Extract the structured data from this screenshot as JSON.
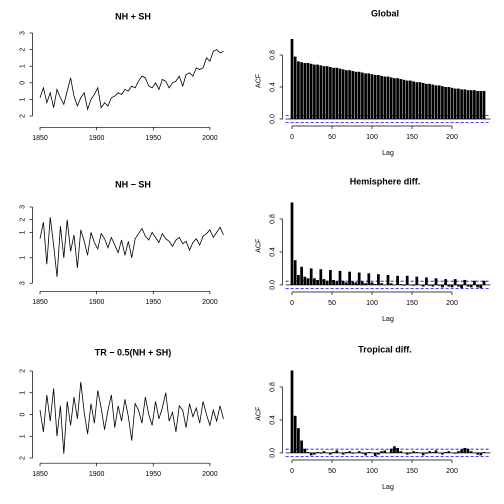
{
  "chart_data": [
    {
      "type": "line",
      "title": "NH + SH",
      "color": "#000000",
      "x": [
        1850,
        1853,
        1856,
        1859,
        1862,
        1865,
        1868,
        1871,
        1874,
        1877,
        1880,
        1883,
        1886,
        1889,
        1892,
        1895,
        1898,
        1901,
        1904,
        1907,
        1910,
        1913,
        1916,
        1919,
        1922,
        1925,
        1928,
        1931,
        1934,
        1937,
        1940,
        1943,
        1946,
        1949,
        1952,
        1955,
        1958,
        1961,
        1964,
        1967,
        1970,
        1973,
        1976,
        1979,
        1982,
        1985,
        1988,
        1991,
        1994,
        1997,
        2000,
        2003,
        2006,
        2009,
        2012
      ],
      "values": [
        -0.9,
        -0.3,
        -1.2,
        -0.6,
        -1.5,
        -0.4,
        -0.9,
        -1.3,
        -0.5,
        0.3,
        -0.8,
        -1.4,
        -0.9,
        -0.6,
        -1.6,
        -1.0,
        -0.7,
        -0.3,
        -1.5,
        -1.2,
        -1.4,
        -0.9,
        -0.8,
        -0.6,
        -0.7,
        -0.4,
        -0.5,
        -0.2,
        -0.3,
        0.1,
        0.4,
        0.3,
        -0.2,
        -0.3,
        0.0,
        -0.4,
        0.2,
        0.1,
        -0.3,
        0.0,
        0.1,
        0.4,
        -0.2,
        0.5,
        0.6,
        0.4,
        0.9,
        0.8,
        0.9,
        1.5,
        1.3,
        1.9,
        2.0,
        1.8,
        1.9
      ],
      "xlim": [
        1846,
        2016
      ],
      "xticks": [
        1850,
        1900,
        1950,
        2000
      ],
      "ylim": [
        -2.5,
        3.2
      ],
      "yticks": [
        3,
        2,
        1,
        0,
        {
          "value": -1,
          "label": "1"
        },
        {
          "value": -2,
          "label": "2"
        }
      ]
    },
    {
      "type": "bar",
      "title": "Global",
      "xlabel": "Lag",
      "ylabel": "ACF",
      "color": "#000000",
      "ci": [
        -0.045,
        0.045
      ],
      "ci_color": "#0000ff",
      "x": [
        0,
        4,
        8,
        12,
        16,
        20,
        24,
        28,
        32,
        36,
        40,
        44,
        48,
        52,
        56,
        60,
        64,
        68,
        72,
        76,
        80,
        84,
        88,
        92,
        96,
        100,
        104,
        108,
        112,
        116,
        120,
        124,
        128,
        132,
        136,
        140,
        144,
        148,
        152,
        156,
        160,
        164,
        168,
        172,
        176,
        180,
        184,
        188,
        192,
        196,
        200,
        204,
        208,
        212,
        216,
        220,
        224,
        228,
        232,
        236,
        240
      ],
      "values": [
        1.0,
        0.78,
        0.72,
        0.71,
        0.7,
        0.7,
        0.69,
        0.68,
        0.68,
        0.67,
        0.66,
        0.66,
        0.65,
        0.64,
        0.64,
        0.63,
        0.62,
        0.61,
        0.61,
        0.6,
        0.59,
        0.59,
        0.58,
        0.57,
        0.57,
        0.56,
        0.55,
        0.55,
        0.54,
        0.53,
        0.53,
        0.52,
        0.51,
        0.51,
        0.5,
        0.49,
        0.48,
        0.48,
        0.47,
        0.46,
        0.46,
        0.45,
        0.44,
        0.44,
        0.43,
        0.42,
        0.42,
        0.41,
        0.4,
        0.4,
        0.39,
        0.38,
        0.38,
        0.37,
        0.37,
        0.36,
        0.36,
        0.36,
        0.35,
        0.35,
        0.35
      ],
      "xlim": [
        -8,
        248
      ],
      "xticks": [
        0,
        50,
        100,
        150,
        200
      ],
      "ylim": [
        -0.05,
        1.0
      ],
      "yticks": [
        {
          "value": 0,
          "label": "0.0"
        },
        0.4,
        0.8
      ]
    },
    {
      "type": "line",
      "title": "NH − SH",
      "color": "#000000",
      "x": [
        1850,
        1853,
        1856,
        1859,
        1862,
        1865,
        1868,
        1871,
        1874,
        1877,
        1880,
        1883,
        1886,
        1889,
        1892,
        1895,
        1898,
        1901,
        1904,
        1907,
        1910,
        1913,
        1916,
        1919,
        1922,
        1925,
        1928,
        1931,
        1934,
        1937,
        1940,
        1943,
        1946,
        1949,
        1952,
        1955,
        1958,
        1961,
        1964,
        1967,
        1970,
        1973,
        1976,
        1979,
        1982,
        1985,
        1988,
        1991,
        1994,
        1997,
        2000,
        2003,
        2006,
        2009,
        2012
      ],
      "values": [
        0.5,
        1.8,
        -1.5,
        2.2,
        0.0,
        -2.5,
        1.5,
        -1.0,
        2.0,
        -0.5,
        0.8,
        -1.8,
        1.2,
        0.3,
        -0.8,
        1.0,
        0.2,
        -0.3,
        0.9,
        0.5,
        -0.2,
        0.6,
        0.0,
        -0.6,
        0.4,
        -0.8,
        0.3,
        -1.0,
        0.5,
        0.9,
        1.3,
        0.7,
        0.4,
        1.0,
        0.6,
        0.2,
        0.9,
        0.5,
        0.3,
        -0.1,
        0.4,
        0.6,
        0.1,
        0.3,
        -0.4,
        0.2,
        0.5,
        0.0,
        0.7,
        0.9,
        1.2,
        0.6,
        1.0,
        1.4,
        0.8
      ],
      "xlim": [
        1846,
        2016
      ],
      "xticks": [
        1850,
        1900,
        1950,
        2000
      ],
      "ylim": [
        -3.4,
        3.4
      ],
      "yticks": [
        3,
        2,
        1,
        {
          "value": -1,
          "label": "1"
        },
        {
          "value": -3,
          "label": "3"
        }
      ]
    },
    {
      "type": "bar",
      "title": "Hemisphere diff.",
      "xlabel": "Lag",
      "ylabel": "ACF",
      "color": "#000000",
      "ci": [
        -0.045,
        0.045
      ],
      "ci_color": "#0000ff",
      "x": [
        0,
        4,
        8,
        12,
        16,
        20,
        24,
        28,
        32,
        36,
        40,
        44,
        48,
        52,
        56,
        60,
        64,
        68,
        72,
        76,
        80,
        84,
        88,
        92,
        96,
        100,
        104,
        108,
        112,
        116,
        120,
        124,
        128,
        132,
        136,
        140,
        144,
        148,
        152,
        156,
        160,
        164,
        168,
        172,
        176,
        180,
        184,
        188,
        192,
        196,
        200,
        204,
        208,
        212,
        216,
        220,
        224,
        228,
        232,
        236,
        240
      ],
      "values": [
        1.0,
        0.3,
        0.12,
        0.22,
        0.1,
        0.08,
        0.2,
        0.08,
        0.06,
        0.19,
        0.07,
        0.05,
        0.18,
        0.06,
        0.04,
        0.17,
        0.05,
        0.03,
        0.16,
        0.04,
        0.03,
        0.15,
        0.04,
        0.02,
        0.14,
        0.03,
        0.01,
        0.13,
        0.02,
        0.0,
        0.12,
        0.02,
        0.0,
        0.11,
        0.01,
        -0.01,
        0.11,
        0.0,
        -0.01,
        0.1,
        0.0,
        -0.02,
        0.09,
        -0.01,
        -0.02,
        0.08,
        -0.01,
        -0.03,
        0.07,
        -0.02,
        -0.03,
        0.07,
        -0.02,
        -0.04,
        0.06,
        -0.02,
        -0.03,
        0.05,
        -0.03,
        -0.04,
        0.05
      ],
      "xlim": [
        -8,
        248
      ],
      "xticks": [
        0,
        50,
        100,
        150,
        200
      ],
      "ylim": [
        -0.05,
        1.0
      ],
      "yticks": [
        {
          "value": 0,
          "label": "0.0"
        },
        0.4,
        0.8
      ]
    },
    {
      "type": "line",
      "title": "TR − 0.5(NH + SH)",
      "color": "#000000",
      "x": [
        1850,
        1853,
        1856,
        1859,
        1862,
        1865,
        1868,
        1871,
        1874,
        1877,
        1880,
        1883,
        1886,
        1889,
        1892,
        1895,
        1898,
        1901,
        1904,
        1907,
        1910,
        1913,
        1916,
        1919,
        1922,
        1925,
        1928,
        1931,
        1934,
        1937,
        1940,
        1943,
        1946,
        1949,
        1952,
        1955,
        1958,
        1961,
        1964,
        1967,
        1970,
        1973,
        1976,
        1979,
        1982,
        1985,
        1988,
        1991,
        1994,
        1997,
        2000,
        2003,
        2006,
        2009,
        2012
      ],
      "values": [
        0.2,
        -0.8,
        0.9,
        -0.3,
        1.2,
        -1.0,
        0.4,
        -1.8,
        0.6,
        -0.5,
        0.8,
        -0.2,
        1.5,
        0.1,
        -0.9,
        0.5,
        -0.4,
        1.1,
        0.3,
        -0.7,
        0.2,
        0.9,
        -0.6,
        0.4,
        -0.3,
        0.7,
        -0.1,
        -1.2,
        0.5,
        0.2,
        -0.4,
        0.8,
        0.0,
        -0.5,
        0.6,
        -0.2,
        0.3,
        1.0,
        -0.3,
        0.1,
        -0.8,
        0.4,
        0.2,
        -0.6,
        0.5,
        -0.1,
        0.3,
        -0.4,
        0.6,
        0.0,
        -0.5,
        0.2,
        -0.3,
        0.4,
        -0.2
      ],
      "xlim": [
        1846,
        2016
      ],
      "xticks": [
        1850,
        1900,
        1950,
        2000
      ],
      "ylim": [
        -2.1,
        2.1
      ],
      "yticks": [
        2,
        1,
        0,
        {
          "value": -1,
          "label": "1"
        },
        {
          "value": -2,
          "label": "2"
        }
      ]
    },
    {
      "type": "bar",
      "title": "Tropical diff.",
      "xlabel": "Lag",
      "ylabel": "ACF",
      "color": "#000000",
      "ci": [
        -0.045,
        0.045
      ],
      "ci_color": "#0000ff",
      "x": [
        0,
        4,
        8,
        12,
        16,
        20,
        24,
        28,
        32,
        36,
        40,
        44,
        48,
        52,
        56,
        60,
        64,
        68,
        72,
        76,
        80,
        84,
        88,
        92,
        96,
        100,
        104,
        108,
        112,
        116,
        120,
        124,
        128,
        132,
        136,
        140,
        144,
        148,
        152,
        156,
        160,
        164,
        168,
        172,
        176,
        180,
        184,
        188,
        192,
        196,
        200,
        204,
        208,
        212,
        216,
        220,
        224,
        228,
        232,
        236,
        240
      ],
      "values": [
        1.0,
        0.45,
        0.3,
        0.15,
        0.05,
        0.01,
        -0.03,
        -0.02,
        0.01,
        -0.01,
        0.02,
        0.0,
        -0.02,
        0.01,
        0.03,
        0.0,
        -0.02,
        0.01,
        0.02,
        -0.01,
        0.0,
        0.02,
        -0.01,
        -0.03,
        0.01,
        0.0,
        -0.04,
        -0.02,
        0.02,
        0.03,
        0.0,
        0.05,
        0.08,
        0.06,
        0.02,
        0.0,
        -0.02,
        -0.01,
        0.02,
        0.01,
        0.0,
        -0.03,
        -0.01,
        0.02,
        0.01,
        0.03,
        0.0,
        -0.02,
        0.01,
        0.02,
        0.0,
        -0.01,
        0.02,
        0.04,
        0.06,
        0.05,
        0.02,
        0.0,
        -0.02,
        -0.03,
        0.01
      ],
      "xlim": [
        -8,
        248
      ],
      "xticks": [
        0,
        50,
        100,
        150,
        200
      ],
      "ylim": [
        -0.05,
        1.0
      ],
      "yticks": [
        {
          "value": 0,
          "label": "0.0"
        },
        0.4,
        0.8
      ]
    }
  ]
}
